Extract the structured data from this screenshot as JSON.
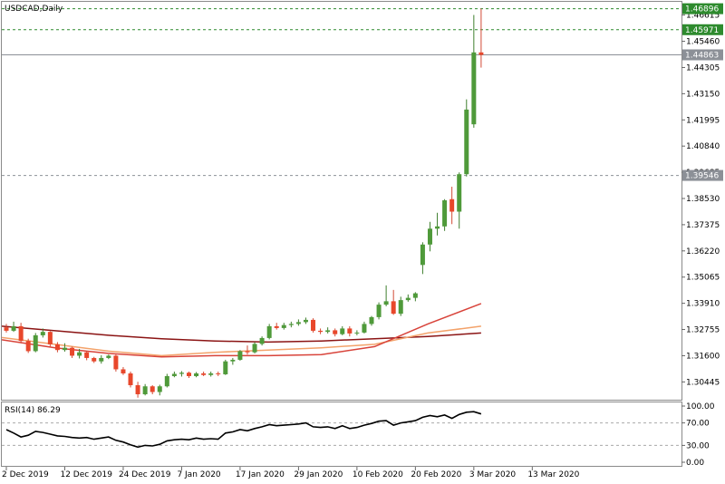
{
  "chart_data": {
    "type": "candlestick",
    "title": "USDCAD,Daily",
    "colors": {
      "bull": "#4f9a3a",
      "bear": "#e8472b",
      "bull_wick": "#3f7f2e",
      "bear_wick": "#d24a35",
      "ma_fast": "#d8433a",
      "ma_mid": "#f3a26a",
      "ma_slow": "#8b1414",
      "grid": "#aaaaaa",
      "level_green": "#2e8b2e",
      "level_gray": "#8c9097",
      "rsi_line": "#000000"
    },
    "price_axis": {
      "range": [
        1.297,
        1.472
      ],
      "ticks": [
        "1.46615",
        "1.45460",
        "1.44305",
        "1.43150",
        "1.41995",
        "1.40840",
        "1.39685",
        "1.38530",
        "1.37375",
        "1.36220",
        "1.35065",
        "1.33910",
        "1.32755",
        "1.31600",
        "1.30445"
      ]
    },
    "levels": [
      {
        "label": "1.46896",
        "value": 1.46896,
        "kind": "green"
      },
      {
        "label": "1.45971",
        "value": 1.45971,
        "kind": "green"
      },
      {
        "label": "1.44863",
        "value": 1.44863,
        "kind": "gray",
        "solid": true
      },
      {
        "label": "1.39546",
        "value": 1.39546,
        "kind": "gray"
      }
    ],
    "time_labels": [
      "2 Dec 2019",
      "12 Dec 2019",
      "24 Dec 2019",
      "7 Jan 2020",
      "17 Jan 2020",
      "29 Jan 2020",
      "10 Feb 2020",
      "20 Feb 2020",
      "3 Mar 2020",
      "13 Mar 2020"
    ],
    "time_label_index": [
      0,
      8,
      16,
      24,
      32,
      40,
      48,
      56,
      64,
      72
    ],
    "candles": [
      [
        1.3285,
        1.33,
        1.3262,
        1.327
      ],
      [
        1.327,
        1.331,
        1.3265,
        1.329
      ],
      [
        1.329,
        1.3305,
        1.3215,
        1.3225
      ],
      [
        1.3225,
        1.3235,
        1.3172,
        1.318
      ],
      [
        1.318,
        1.326,
        1.3175,
        1.325
      ],
      [
        1.325,
        1.328,
        1.324,
        1.3265
      ],
      [
        1.3265,
        1.3268,
        1.32,
        1.321
      ],
      [
        1.321,
        1.322,
        1.3175,
        1.3185
      ],
      [
        1.3185,
        1.3215,
        1.3178,
        1.3195
      ],
      [
        1.3195,
        1.32,
        1.315,
        1.316
      ],
      [
        1.316,
        1.319,
        1.3148,
        1.3175
      ],
      [
        1.3175,
        1.318,
        1.314,
        1.315
      ],
      [
        1.315,
        1.3155,
        1.3128,
        1.3135
      ],
      [
        1.3135,
        1.3162,
        1.3125,
        1.315
      ],
      [
        1.315,
        1.3165,
        1.3145,
        1.316
      ],
      [
        1.316,
        1.3165,
        1.309,
        1.31
      ],
      [
        1.31,
        1.311,
        1.3075,
        1.3082
      ],
      [
        1.3082,
        1.309,
        1.302,
        1.303
      ],
      [
        1.303,
        1.3045,
        1.2975,
        1.299
      ],
      [
        1.299,
        1.3035,
        1.2985,
        1.3025
      ],
      [
        1.3025,
        1.303,
        1.299,
        1.3
      ],
      [
        1.3,
        1.3032,
        1.2985,
        1.3025
      ],
      [
        1.3025,
        1.308,
        1.302,
        1.307
      ],
      [
        1.307,
        1.309,
        1.3065,
        1.308
      ],
      [
        1.308,
        1.3092,
        1.3068,
        1.3085
      ],
      [
        1.3085,
        1.309,
        1.3062,
        1.307
      ],
      [
        1.307,
        1.3088,
        1.3065,
        1.3082
      ],
      [
        1.3082,
        1.309,
        1.307,
        1.3075
      ],
      [
        1.3075,
        1.309,
        1.3068,
        1.3082
      ],
      [
        1.3082,
        1.309,
        1.307,
        1.3078
      ],
      [
        1.3078,
        1.3142,
        1.3075,
        1.3135
      ],
      [
        1.3135,
        1.315,
        1.312,
        1.3142
      ],
      [
        1.3142,
        1.3185,
        1.3138,
        1.318
      ],
      [
        1.318,
        1.3205,
        1.3165,
        1.3175
      ],
      [
        1.3175,
        1.322,
        1.317,
        1.3212
      ],
      [
        1.3212,
        1.3245,
        1.3205,
        1.3238
      ],
      [
        1.3238,
        1.33,
        1.3232,
        1.329
      ],
      [
        1.329,
        1.3305,
        1.3275,
        1.3282
      ],
      [
        1.3282,
        1.3305,
        1.3275,
        1.3295
      ],
      [
        1.3295,
        1.331,
        1.3285,
        1.33
      ],
      [
        1.33,
        1.332,
        1.3292,
        1.3308
      ],
      [
        1.3308,
        1.3328,
        1.33,
        1.3318
      ],
      [
        1.3318,
        1.3325,
        1.3262,
        1.327
      ],
      [
        1.327,
        1.328,
        1.3255,
        1.3265
      ],
      [
        1.3265,
        1.3285,
        1.3258,
        1.3272
      ],
      [
        1.3272,
        1.328,
        1.3245,
        1.3255
      ],
      [
        1.3255,
        1.329,
        1.325,
        1.328
      ],
      [
        1.328,
        1.329,
        1.3245,
        1.3258
      ],
      [
        1.3258,
        1.3272,
        1.325,
        1.3262
      ],
      [
        1.3262,
        1.331,
        1.3258,
        1.33
      ],
      [
        1.33,
        1.3335,
        1.3292,
        1.333
      ],
      [
        1.333,
        1.3395,
        1.332,
        1.3385
      ],
      [
        1.3385,
        1.347,
        1.3378,
        1.34
      ],
      [
        1.34,
        1.345,
        1.334,
        1.3345
      ],
      [
        1.3345,
        1.342,
        1.3335,
        1.3405
      ],
      [
        1.3405,
        1.343,
        1.3398,
        1.3415
      ],
      [
        1.3415,
        1.344,
        1.34,
        1.3435
      ],
      [
        1.356,
        1.366,
        1.352,
        1.365
      ],
      [
        1.365,
        1.375,
        1.362,
        1.372
      ],
      [
        1.372,
        1.379,
        1.369,
        1.373
      ],
      [
        1.373,
        1.385,
        1.371,
        1.3845
      ],
      [
        1.385,
        1.3905,
        1.374,
        1.3795
      ],
      [
        1.3795,
        1.3968,
        1.372,
        1.396
      ],
      [
        1.396,
        1.429,
        1.395,
        1.4245
      ],
      [
        1.418,
        1.4662,
        1.4165,
        1.4497
      ],
      [
        1.4497,
        1.469,
        1.443,
        1.4486
      ]
    ],
    "moving_averages": [
      {
        "color": "#8b1414",
        "values": [
          1.329,
          1.327,
          1.325,
          1.3235,
          1.3225,
          1.322,
          1.3225,
          1.3235,
          1.3245,
          1.326
        ]
      },
      {
        "color": "#f3a26a",
        "values": [
          1.324,
          1.321,
          1.318,
          1.316,
          1.3175,
          1.3185,
          1.3195,
          1.321,
          1.326,
          1.329
        ]
      },
      {
        "color": "#d8433a",
        "values": [
          1.323,
          1.3195,
          1.317,
          1.3155,
          1.316,
          1.316,
          1.3165,
          1.32,
          1.33,
          1.339
        ]
      }
    ],
    "rsi": {
      "label": "RSI(14) 86.29",
      "ticks": [
        "100.00",
        "70.00",
        "30.00",
        "0.00"
      ],
      "levels": [
        70,
        30
      ],
      "values": [
        58,
        52,
        45,
        48,
        55,
        53,
        50,
        47,
        46,
        44,
        43,
        44,
        41,
        43,
        45,
        39,
        36,
        31,
        27,
        30,
        29,
        32,
        38,
        40,
        41,
        40,
        43,
        41,
        42,
        41,
        52,
        54,
        58,
        56,
        60,
        63,
        67,
        65,
        66,
        67,
        68,
        70,
        63,
        62,
        63,
        60,
        65,
        60,
        62,
        66,
        69,
        73,
        74,
        66,
        70,
        72,
        74,
        80,
        83,
        81,
        84,
        78,
        85,
        89,
        90,
        86
      ]
    }
  }
}
